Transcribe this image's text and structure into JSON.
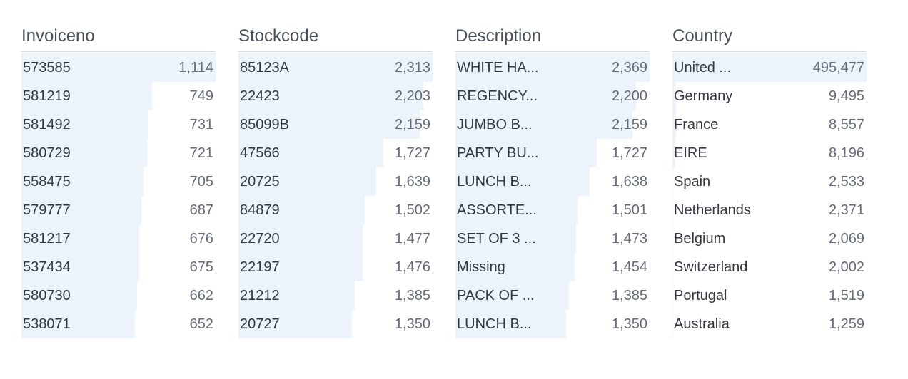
{
  "panel_name": "field-top-values",
  "bar_color": "#ecf3fb",
  "columns": [
    {
      "title": "Invoiceno",
      "items": [
        {
          "label": "573585",
          "count": 1114,
          "display": "1,114"
        },
        {
          "label": "581219",
          "count": 749,
          "display": "749"
        },
        {
          "label": "581492",
          "count": 731,
          "display": "731"
        },
        {
          "label": "580729",
          "count": 721,
          "display": "721"
        },
        {
          "label": "558475",
          "count": 705,
          "display": "705"
        },
        {
          "label": "579777",
          "count": 687,
          "display": "687"
        },
        {
          "label": "581217",
          "count": 676,
          "display": "676"
        },
        {
          "label": "537434",
          "count": 675,
          "display": "675"
        },
        {
          "label": "580730",
          "count": 662,
          "display": "662"
        },
        {
          "label": "538071",
          "count": 652,
          "display": "652"
        }
      ]
    },
    {
      "title": "Stockcode",
      "items": [
        {
          "label": "85123A",
          "count": 2313,
          "display": "2,313"
        },
        {
          "label": "22423",
          "count": 2203,
          "display": "2,203"
        },
        {
          "label": "85099B",
          "count": 2159,
          "display": "2,159"
        },
        {
          "label": "47566",
          "count": 1727,
          "display": "1,727"
        },
        {
          "label": "20725",
          "count": 1639,
          "display": "1,639"
        },
        {
          "label": "84879",
          "count": 1502,
          "display": "1,502"
        },
        {
          "label": "22720",
          "count": 1477,
          "display": "1,477"
        },
        {
          "label": "22197",
          "count": 1476,
          "display": "1,476"
        },
        {
          "label": "21212",
          "count": 1385,
          "display": "1,385"
        },
        {
          "label": "20727",
          "count": 1350,
          "display": "1,350"
        }
      ]
    },
    {
      "title": "Description",
      "items": [
        {
          "label": "WHITE HA...",
          "count": 2369,
          "display": "2,369"
        },
        {
          "label": "REGENCY...",
          "count": 2200,
          "display": "2,200"
        },
        {
          "label": "JUMBO B...",
          "count": 2159,
          "display": "2,159"
        },
        {
          "label": "PARTY BU...",
          "count": 1727,
          "display": "1,727"
        },
        {
          "label": "LUNCH B...",
          "count": 1638,
          "display": "1,638"
        },
        {
          "label": "ASSORTE...",
          "count": 1501,
          "display": "1,501"
        },
        {
          "label": "SET OF 3 ...",
          "count": 1473,
          "display": "1,473"
        },
        {
          "label": "Missing",
          "count": 1454,
          "display": "1,454"
        },
        {
          "label": "PACK OF ...",
          "count": 1385,
          "display": "1,385"
        },
        {
          "label": "LUNCH B...",
          "count": 1350,
          "display": "1,350"
        }
      ]
    },
    {
      "title": "Country",
      "items": [
        {
          "label": "United ...",
          "count": 495477,
          "display": "495,477"
        },
        {
          "label": "Germany",
          "count": 9495,
          "display": "9,495"
        },
        {
          "label": "France",
          "count": 8557,
          "display": "8,557"
        },
        {
          "label": "EIRE",
          "count": 8196,
          "display": "8,196"
        },
        {
          "label": "Spain",
          "count": 2533,
          "display": "2,533"
        },
        {
          "label": "Netherlands",
          "count": 2371,
          "display": "2,371"
        },
        {
          "label": "Belgium",
          "count": 2069,
          "display": "2,069"
        },
        {
          "label": "Switzerland",
          "count": 2002,
          "display": "2,002"
        },
        {
          "label": "Portugal",
          "count": 1519,
          "display": "1,519"
        },
        {
          "label": "Australia",
          "count": 1259,
          "display": "1,259"
        }
      ]
    }
  ]
}
